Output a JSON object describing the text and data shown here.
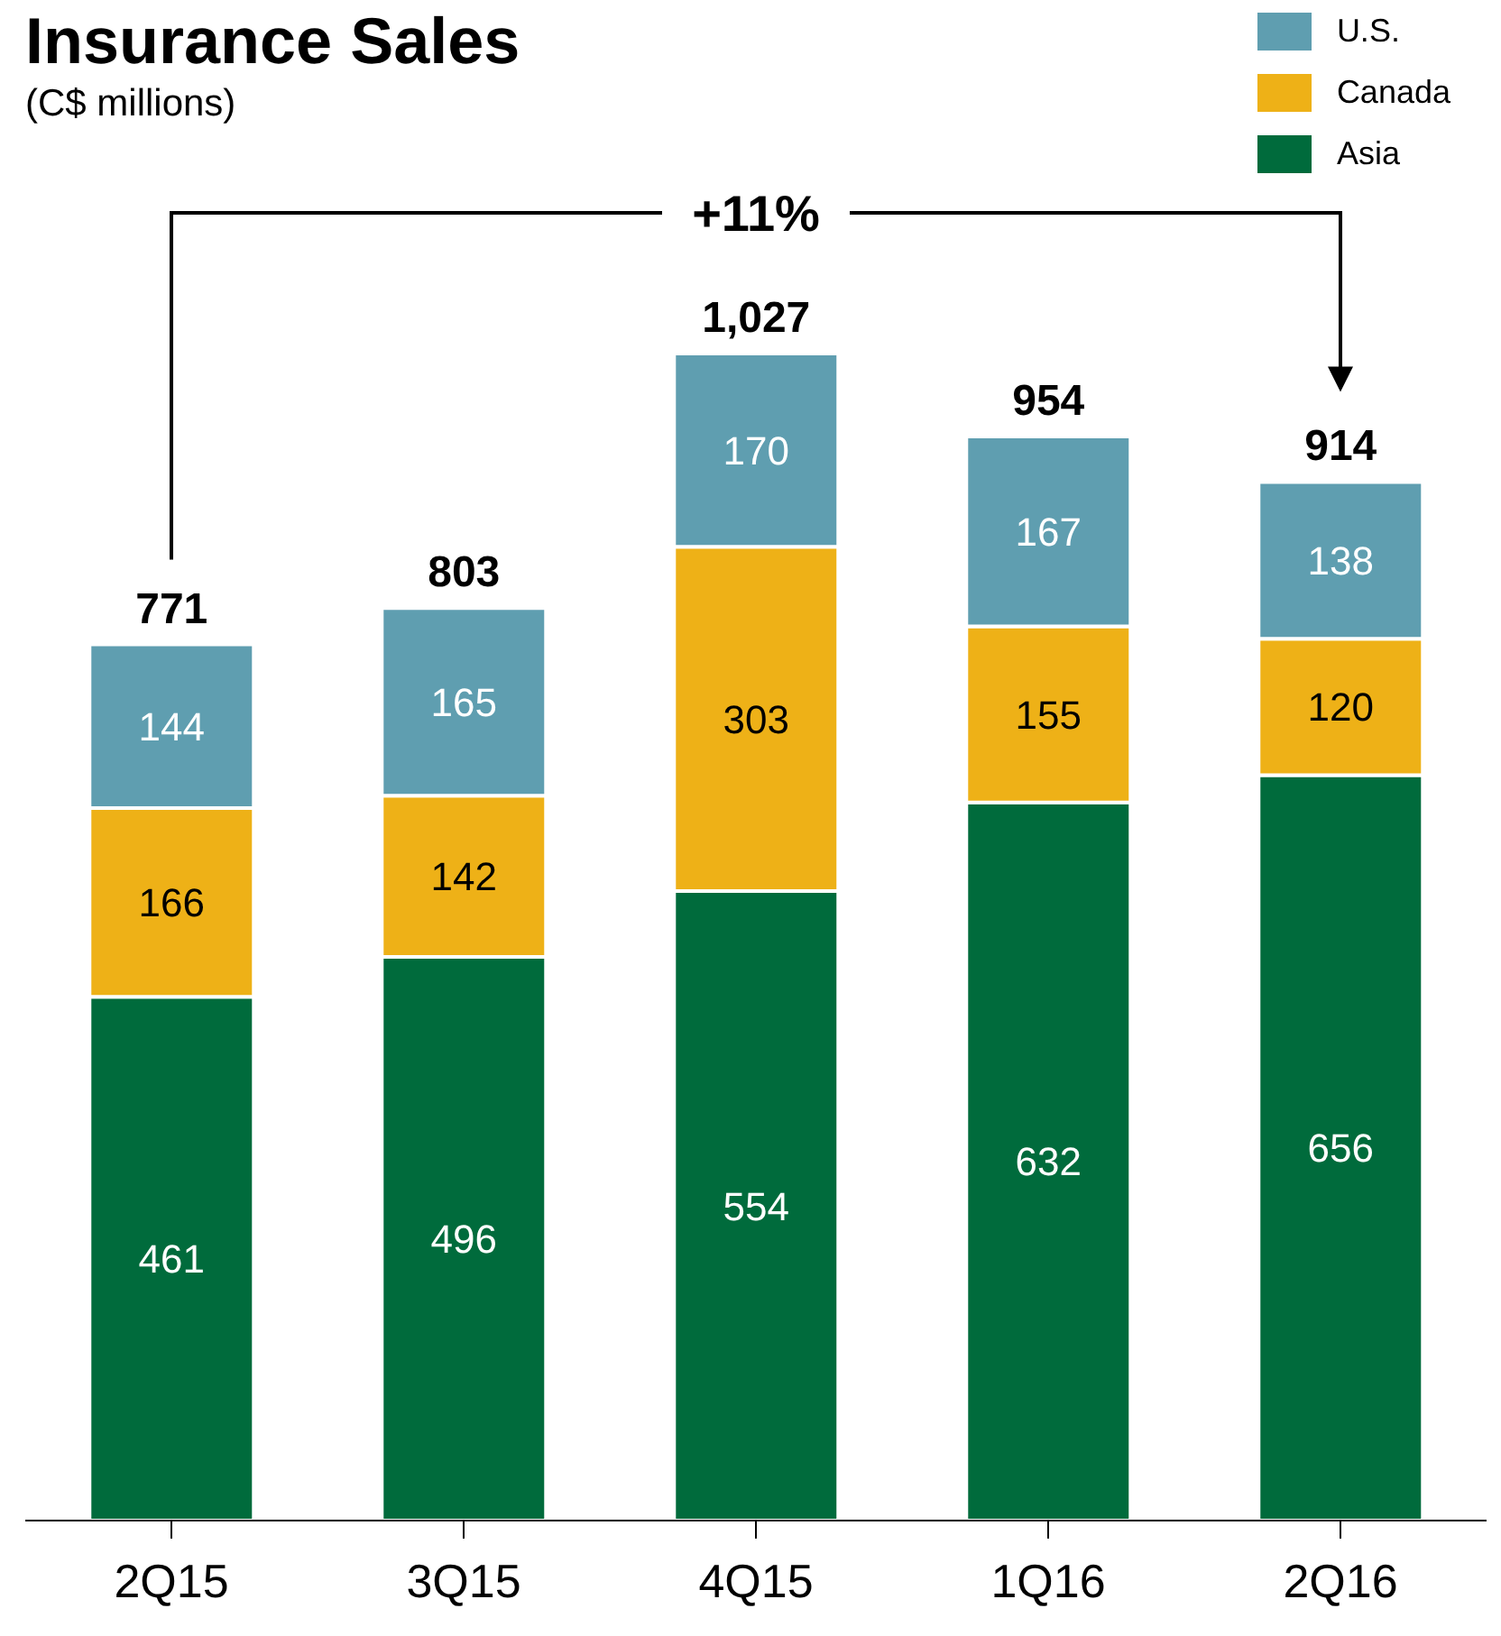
{
  "chart_data": {
    "type": "bar",
    "title": "Insurance Sales",
    "subtitle": "(C$ millions)",
    "categories": [
      "2Q15",
      "3Q15",
      "4Q15",
      "1Q16",
      "2Q16"
    ],
    "stacked": true,
    "data_labels": true,
    "legend": "top right",
    "series": [
      {
        "name": "Asia",
        "color": "#006b3c",
        "values": [
          461,
          496,
          554,
          632,
          656
        ]
      },
      {
        "name": "Canada",
        "color": "#eeb117",
        "values": [
          166,
          142,
          303,
          155,
          120
        ]
      },
      {
        "name": "U.S.",
        "color": "#5f9eb0",
        "values": [
          144,
          165,
          170,
          167,
          138
        ]
      }
    ],
    "totals": [
      "771",
      "803",
      "1,027",
      "954",
      "914"
    ],
    "annotations": [
      "+11%"
    ]
  }
}
